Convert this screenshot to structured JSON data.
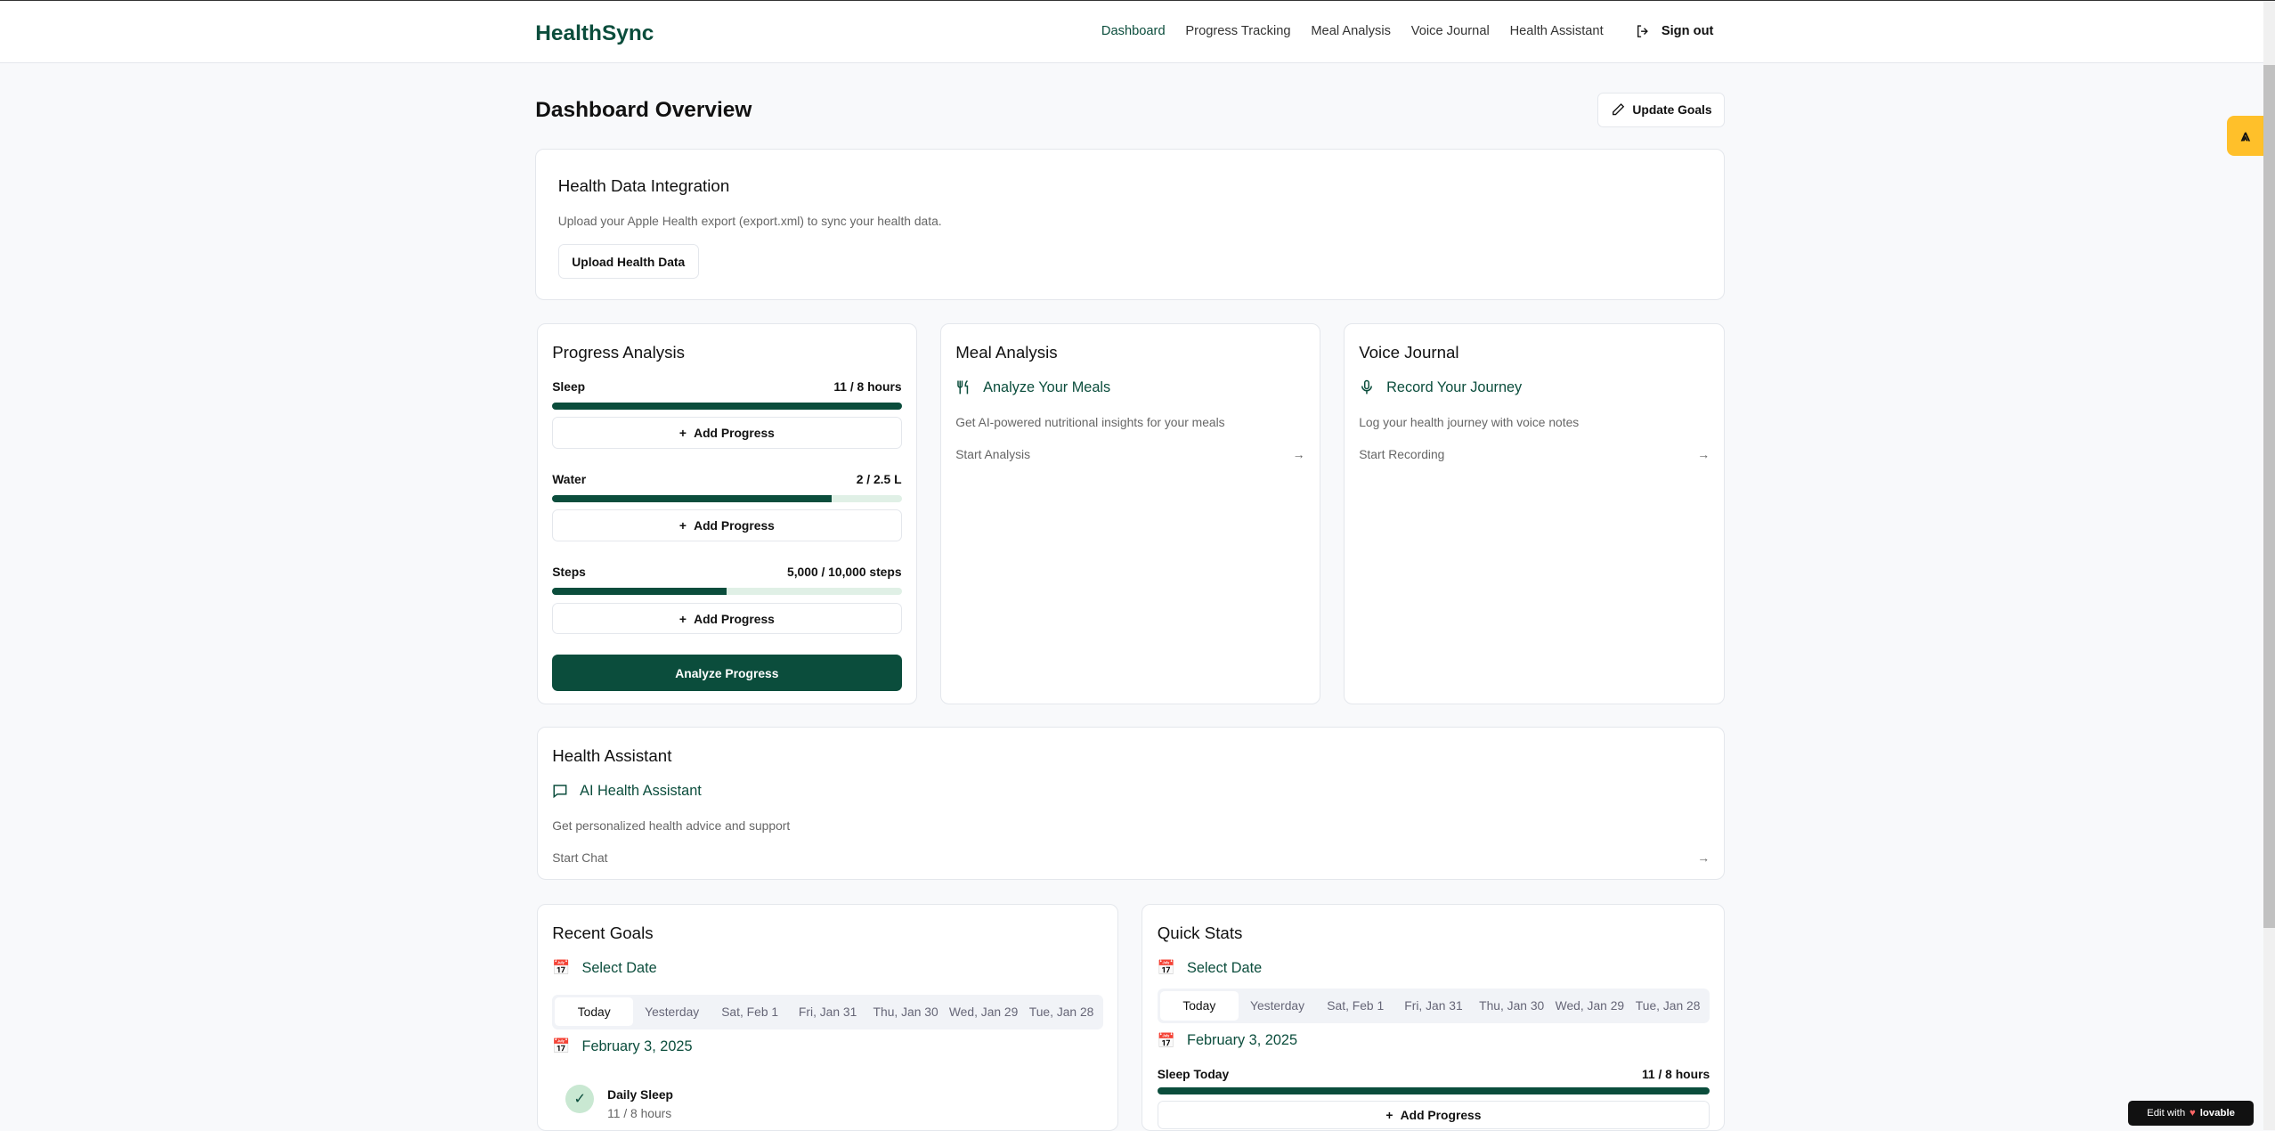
{
  "header": {
    "logo": "HealthSync",
    "nav": [
      "Dashboard",
      "Progress Tracking",
      "Meal Analysis",
      "Voice Journal",
      "Health Assistant"
    ],
    "signout": "Sign out"
  },
  "page": {
    "title": "Dashboard Overview",
    "update_goals": "Update Goals"
  },
  "integration": {
    "title": "Health Data Integration",
    "desc": "Upload your Apple Health export (export.xml) to sync your health data.",
    "button": "Upload Health Data"
  },
  "progress": {
    "title": "Progress Analysis",
    "add_label": "Add Progress",
    "analyze": "Analyze Progress",
    "items": [
      {
        "label": "Sleep",
        "value": "11 / 8 hours",
        "percent": 100
      },
      {
        "label": "Water",
        "value": "2 / 2.5 L",
        "percent": 80
      },
      {
        "label": "Steps",
        "value": "5,000 / 10,000 steps",
        "percent": 50
      }
    ]
  },
  "meal": {
    "title": "Meal Analysis",
    "feature": "Analyze Your Meals",
    "desc": "Get AI-powered nutritional insights for your meals",
    "link": "Start Analysis"
  },
  "voice": {
    "title": "Voice Journal",
    "feature": "Record Your Journey",
    "desc": "Log your health journey with voice notes",
    "link": "Start Recording"
  },
  "assistant": {
    "title": "Health Assistant",
    "feature": "AI Health Assistant",
    "desc": "Get personalized health advice and support",
    "link": "Start Chat"
  },
  "date_tabs": [
    "Today",
    "Yesterday",
    "Sat, Feb 1",
    "Fri, Jan 31",
    "Thu, Jan 30",
    "Wed, Jan 29",
    "Tue, Jan 28"
  ],
  "recent": {
    "title": "Recent Goals",
    "select": "Select Date",
    "date": "February 3, 2025",
    "goal_title": "Daily Sleep",
    "goal_value": "11 / 8 hours"
  },
  "quick": {
    "title": "Quick Stats",
    "select": "Select Date",
    "date": "February 3, 2025",
    "stat_label": "Sleep Today",
    "stat_value": "11 / 8 hours",
    "stat_percent": 100,
    "add_label": "Add Progress"
  },
  "badge": {
    "text": "Edit with",
    "brand": "lovable"
  },
  "colors": {
    "accent": "#0b4d3c",
    "widget": "#ffc02a"
  }
}
